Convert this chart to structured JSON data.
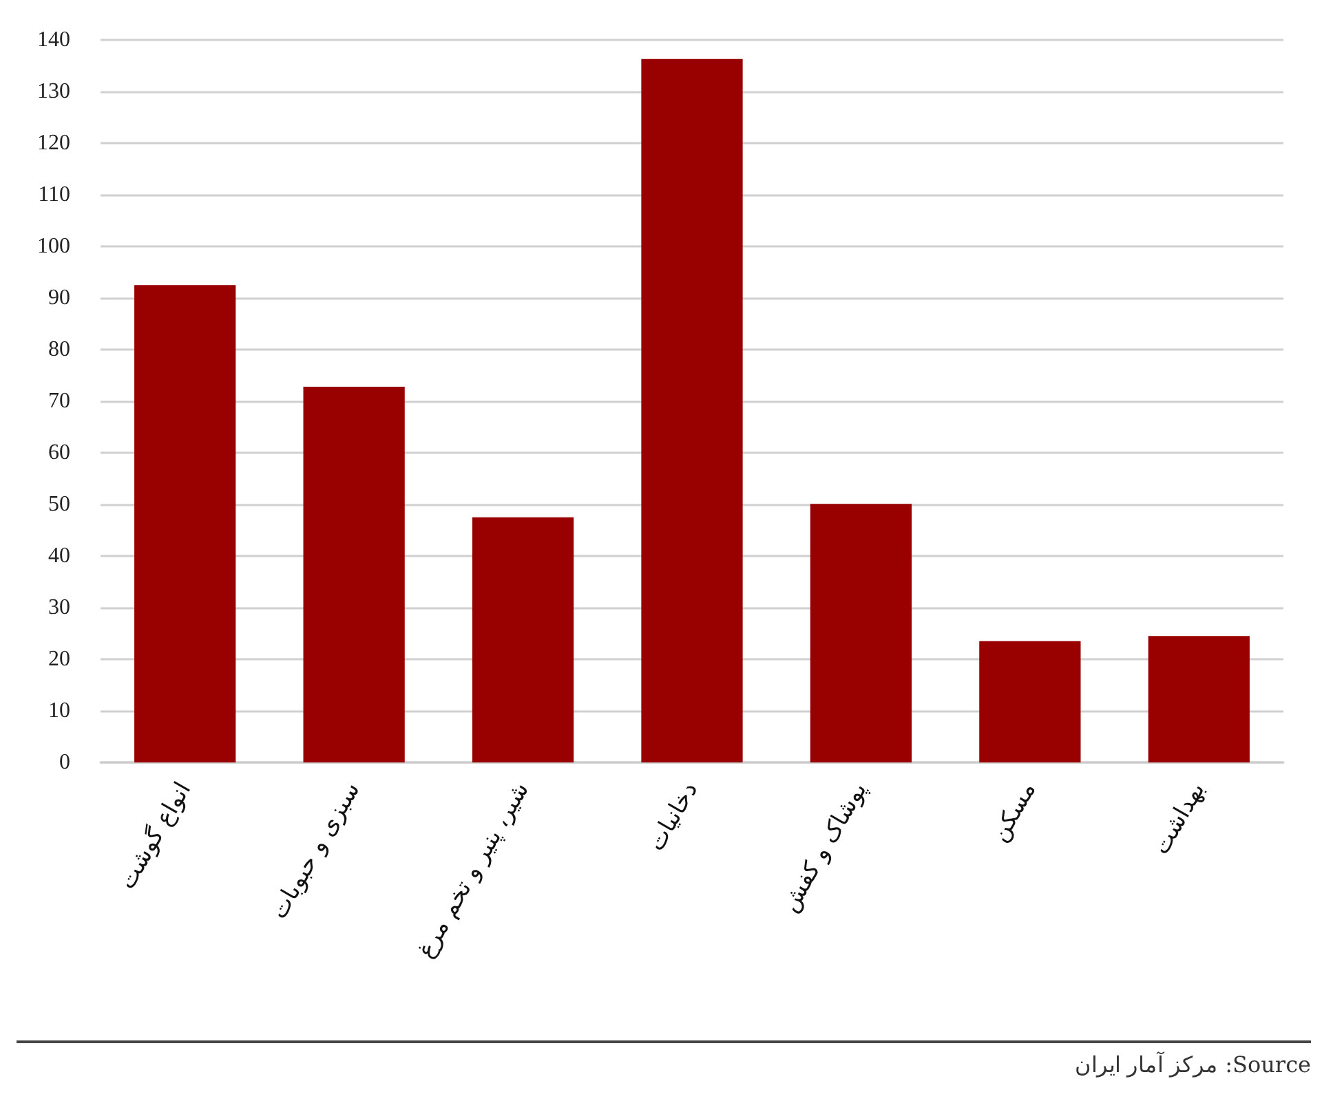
{
  "chart_data": {
    "type": "bar",
    "categories": [
      "انواع گوشت",
      "سبزی و حبوبات",
      "شیر، پنیر و تخم مرغ",
      "دخانیات",
      "پوشاک و کفش",
      "مسکن",
      "بهداشت"
    ],
    "values": [
      92.5,
      72.8,
      47.5,
      136.3,
      50.1,
      23.5,
      24.5
    ],
    "color": "#990000",
    "ylim": [
      0,
      140
    ],
    "yticks": [
      0,
      10,
      20,
      30,
      40,
      50,
      60,
      70,
      80,
      90,
      100,
      110,
      120,
      130,
      140
    ],
    "grid": "y",
    "annotations": [
      "Source: مرکز آمار ایران"
    ]
  }
}
